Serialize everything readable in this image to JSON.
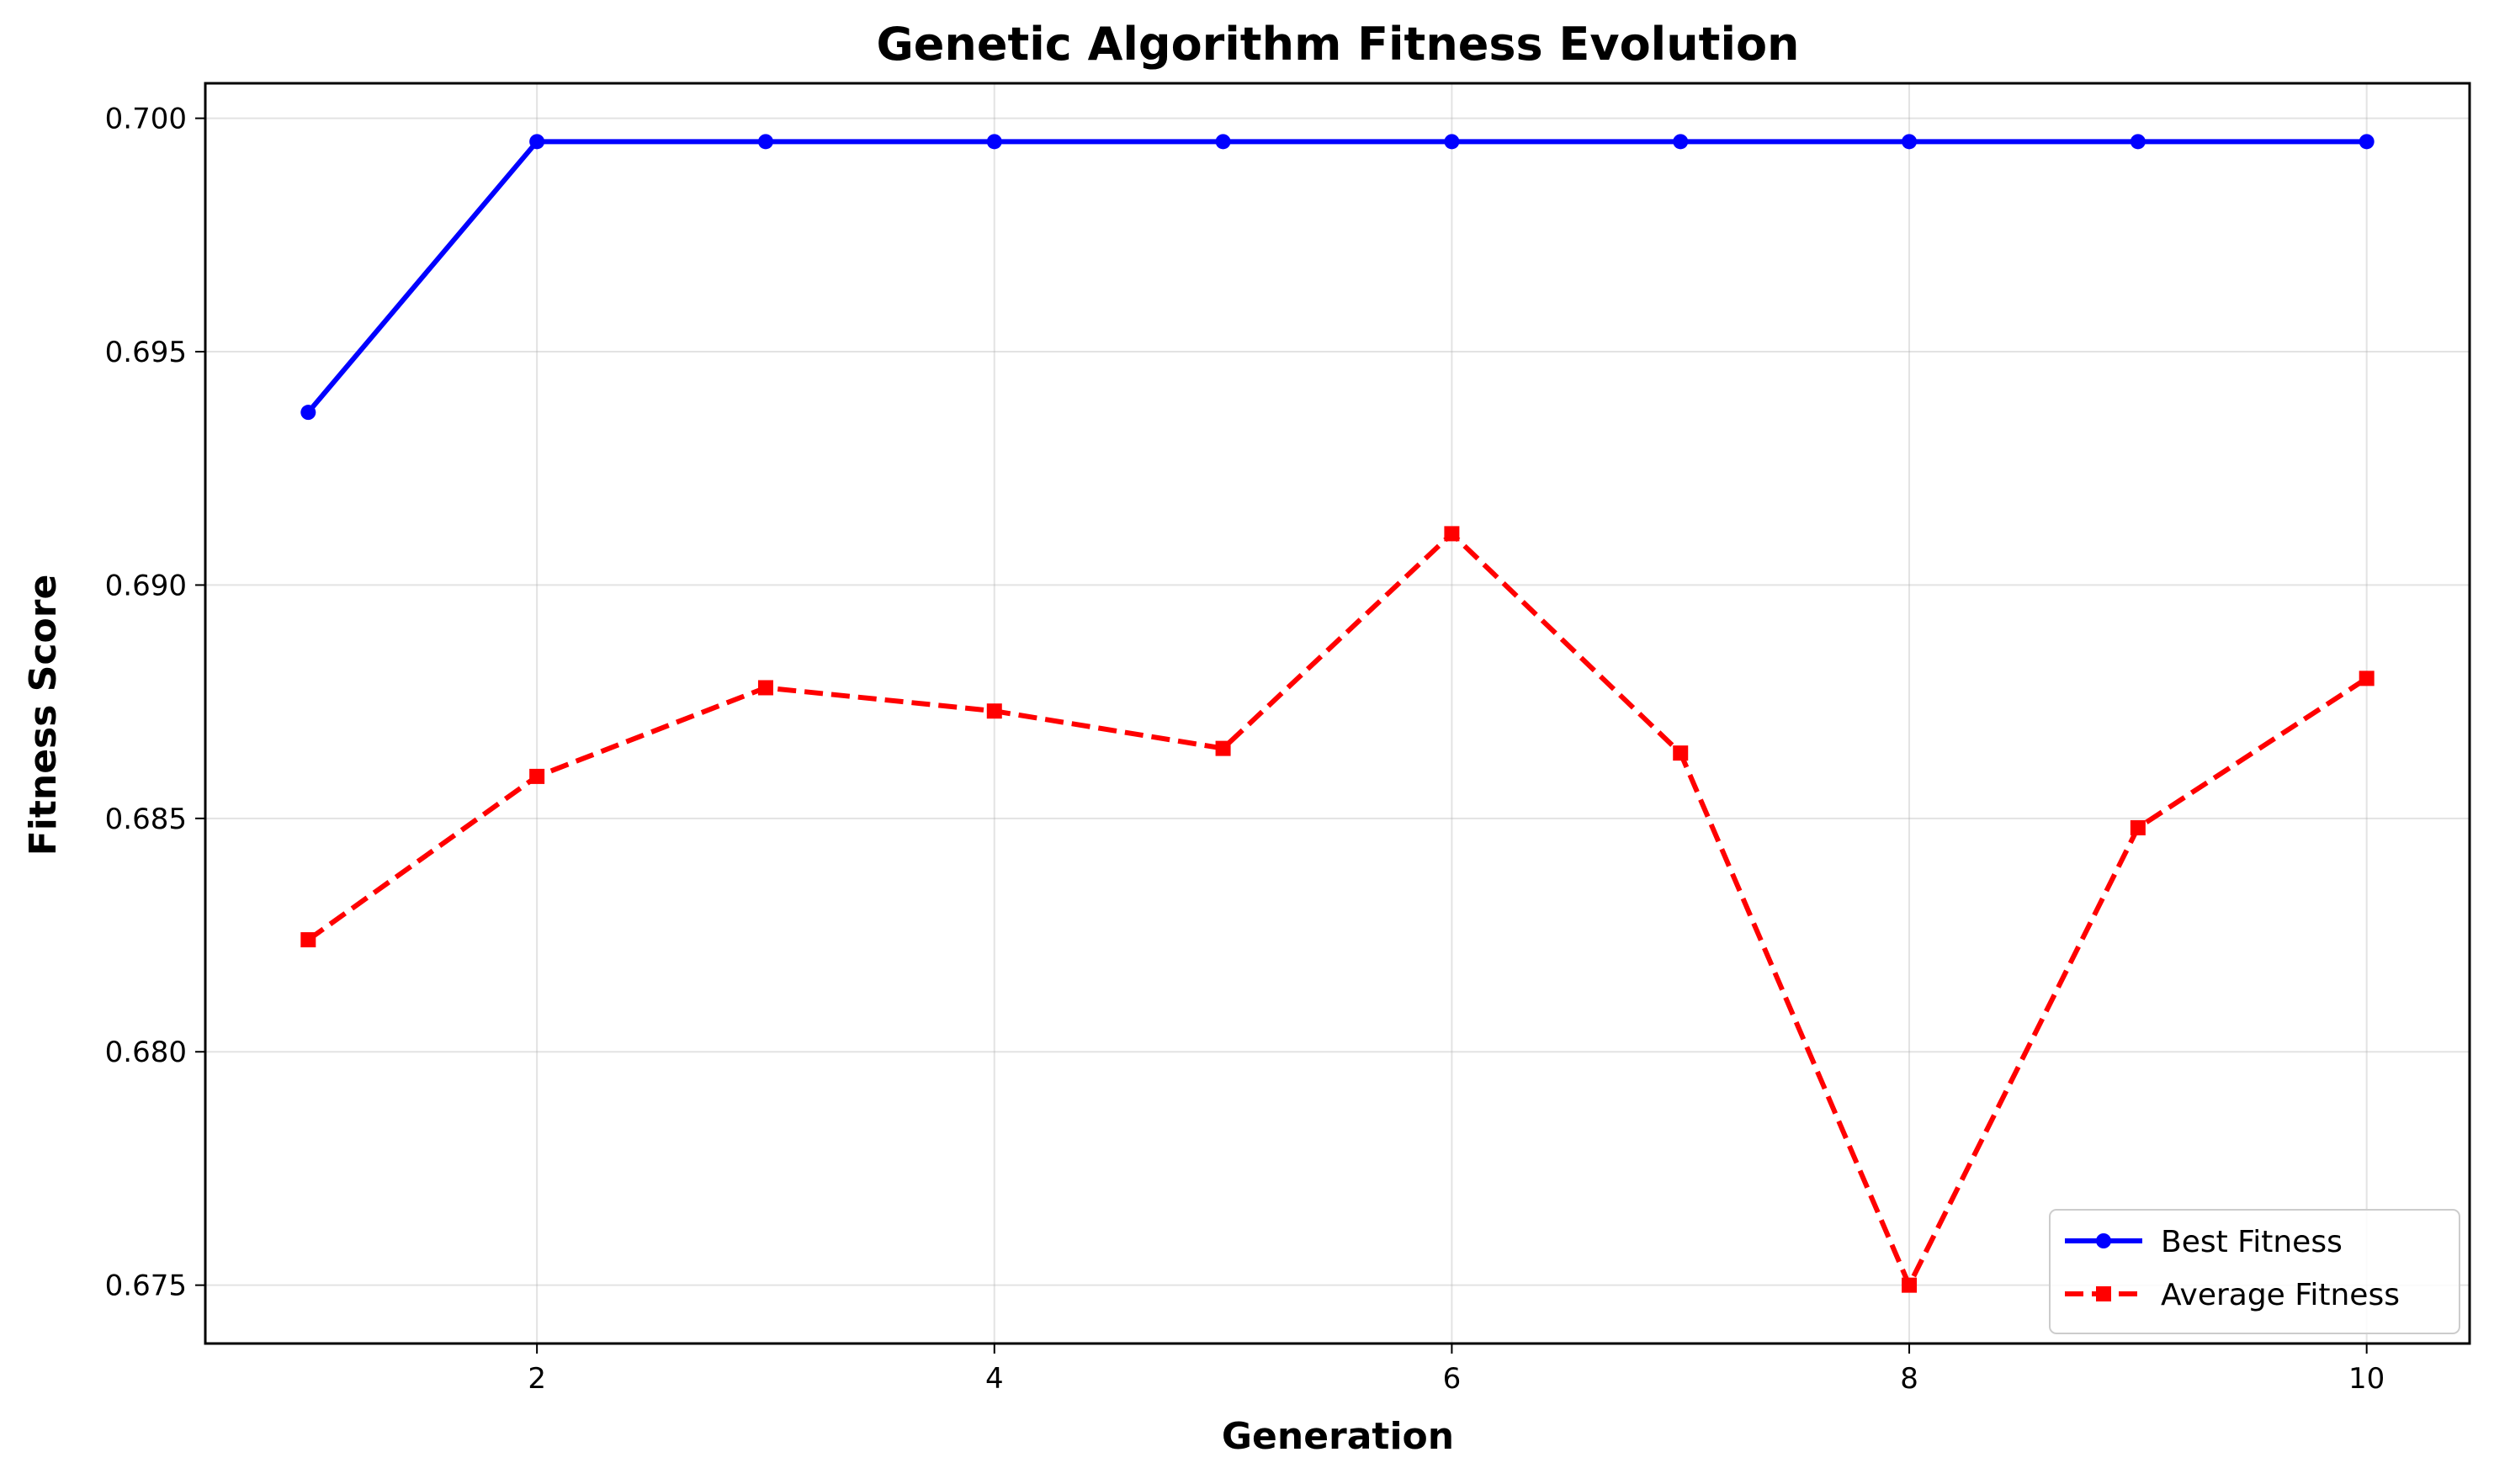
{
  "chart_data": {
    "type": "line",
    "title": "Genetic Algorithm Fitness Evolution",
    "xlabel": "Generation",
    "ylabel": "Fitness Score",
    "x": [
      1,
      2,
      3,
      4,
      5,
      6,
      7,
      8,
      9,
      10
    ],
    "xlim": [
      0.55,
      10.45
    ],
    "ylim": [
      0.67375,
      0.70075
    ],
    "xticks": [
      2,
      4,
      6,
      8,
      10
    ],
    "xtick_labels": [
      "2",
      "4",
      "6",
      "8",
      "10"
    ],
    "yticks": [
      0.675,
      0.68,
      0.685,
      0.69,
      0.695,
      0.7
    ],
    "ytick_labels": [
      "0.675",
      "0.680",
      "0.685",
      "0.690",
      "0.695",
      "0.700"
    ],
    "grid": true,
    "legend_position": "lower-right",
    "series": [
      {
        "name": "Best Fitness",
        "color": "#0000ff",
        "line_style": "solid",
        "marker": "circle",
        "values": [
          0.6937,
          0.6995,
          0.6995,
          0.6995,
          0.6995,
          0.6995,
          0.6995,
          0.6995,
          0.6995,
          0.6995
        ]
      },
      {
        "name": "Average Fitness",
        "color": "#ff0000",
        "line_style": "dashed",
        "marker": "square",
        "values": [
          0.6824,
          0.6859,
          0.6878,
          0.6873,
          0.6865,
          0.6911,
          0.6864,
          0.675,
          0.6848,
          0.688
        ]
      }
    ]
  }
}
